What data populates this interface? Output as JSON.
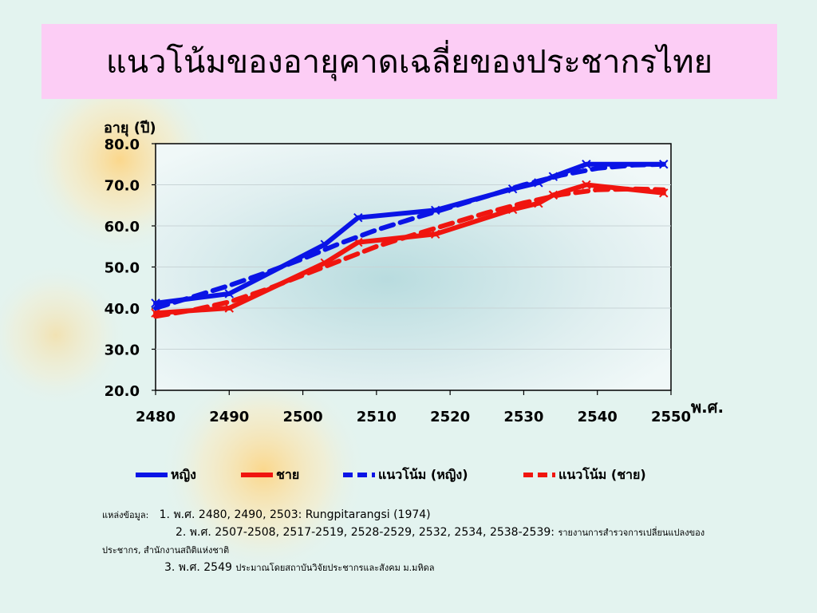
{
  "title": "แนวโน้มของอายุคาดเฉลี่ยของประชากรไทย",
  "colors": {
    "female": "#0a14e6",
    "male": "#f0150f",
    "title_bg": "#fccdf5",
    "plot_bg": "#e8f4f4"
  },
  "chart_data": {
    "type": "line",
    "ylabel": "อายุ (ปี)",
    "xlabel": "พ.ศ.",
    "xlim": [
      2480,
      2550
    ],
    "ylim": [
      20.0,
      80.0
    ],
    "x_ticks": [
      "2480",
      "2490",
      "2500",
      "2510",
      "2520",
      "2530",
      "2540",
      "2550"
    ],
    "y_ticks": [
      "20.0",
      "30.0",
      "40.0",
      "50.0",
      "60.0",
      "70.0",
      "80.0"
    ],
    "grid": true,
    "legend_position": "bottom",
    "series": [
      {
        "name": "หญิง",
        "style": "solid",
        "color": "#0a14e6",
        "x": [
          2480,
          2490,
          2503,
          2507.5,
          2518,
          2528.5,
          2532,
          2534,
          2538.5,
          2549
        ],
        "y": [
          41.2,
          43.5,
          55.5,
          62.0,
          63.8,
          69.0,
          70.5,
          72.0,
          75.0,
          75.0
        ]
      },
      {
        "name": "ชาย",
        "style": "solid",
        "color": "#f0150f",
        "x": [
          2480,
          2490,
          2503,
          2507.5,
          2518,
          2528.5,
          2532,
          2534,
          2538.5,
          2549
        ],
        "y": [
          38.8,
          40.0,
          51.0,
          56.0,
          58.0,
          64.0,
          65.5,
          67.5,
          70.0,
          68.0
        ]
      },
      {
        "name": "แนวโน้ม (หญิง)",
        "style": "dashed",
        "color": "#0a14e6",
        "x": [
          2480,
          2485,
          2490,
          2495,
          2500,
          2505,
          2510,
          2515,
          2520,
          2525,
          2530,
          2535,
          2540,
          2545,
          2549
        ],
        "y": [
          40.0,
          42.7,
          45.5,
          48.6,
          52.0,
          55.7,
          59.0,
          61.8,
          64.5,
          67.2,
          70.0,
          72.3,
          74.0,
          74.8,
          75.0
        ]
      },
      {
        "name": "แนวโน้ม (ชาย)",
        "style": "dashed",
        "color": "#f0150f",
        "x": [
          2480,
          2485,
          2490,
          2495,
          2500,
          2505,
          2510,
          2515,
          2520,
          2525,
          2530,
          2535,
          2540,
          2545,
          2549
        ],
        "y": [
          38.0,
          39.5,
          41.5,
          44.5,
          48.0,
          51.5,
          55.0,
          57.8,
          60.5,
          63.2,
          65.6,
          67.6,
          68.8,
          69.0,
          68.8
        ]
      }
    ]
  },
  "source": {
    "heading": "แหล่งข้อมูล:",
    "line1": "1. พ.ศ. 2480, 2490, 2503: Rungpitarangsi (1974)",
    "line2": "2. พ.ศ. 2507-2508, 2517-2519, 2528-2529, 2532, 2534, 2538-2539:",
    "line2_tail": "รายงานการสำรวจการเปลี่ยนแปลงของ",
    "line3": "ประชากร,  สำนักงานสถิติแห่งชาติ",
    "line4_num": "3. พ.ศ. 2549",
    "line4_text": "ประมาณโดยสถาบันวิจัยประชากรและสังคม ม.มหิดล"
  }
}
